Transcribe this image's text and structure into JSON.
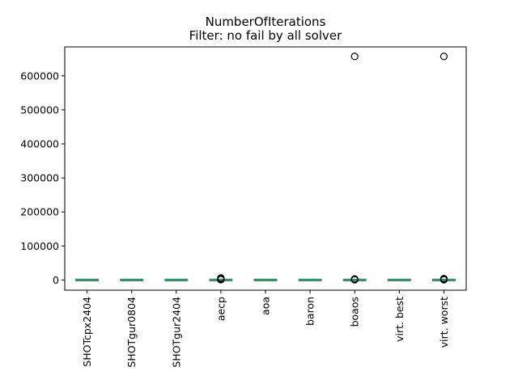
{
  "chart_data": {
    "type": "box",
    "title": "NumberOfIterations",
    "subtitle": "Filter: no fail by all solver",
    "xlabel": "",
    "ylabel": "",
    "ylim": [
      -30000,
      685000
    ],
    "yticks": [
      0,
      100000,
      200000,
      300000,
      400000,
      500000,
      600000
    ],
    "ytick_labels": [
      "0",
      "100000",
      "200000",
      "300000",
      "400000",
      "500000",
      "600000"
    ],
    "grid": false,
    "legend": "none",
    "categories": [
      "SHOTcpx2404",
      "SHOTgur0804",
      "SHOTgur2404",
      "aecp",
      "aoa",
      "baron",
      "boaos",
      "virt. best",
      "virt. worst"
    ],
    "boxes": [
      {
        "name": "SHOTcpx2404",
        "whislo": 0,
        "q1": 0,
        "median": 0,
        "q3": 0,
        "whishi": 0,
        "outliers": []
      },
      {
        "name": "SHOTgur0804",
        "whislo": 0,
        "q1": 0,
        "median": 0,
        "q3": 0,
        "whishi": 0,
        "outliers": []
      },
      {
        "name": "SHOTgur2404",
        "whislo": 0,
        "q1": 0,
        "median": 0,
        "q3": 0,
        "whishi": 0,
        "outliers": []
      },
      {
        "name": "aecp",
        "whislo": 0,
        "q1": 0,
        "median": 0,
        "q3": 0,
        "whishi": 0,
        "outliers": [
          1000,
          2500,
          4000,
          6000
        ]
      },
      {
        "name": "aoa",
        "whislo": 0,
        "q1": 0,
        "median": 0,
        "q3": 0,
        "whishi": 0,
        "outliers": []
      },
      {
        "name": "baron",
        "whislo": 0,
        "q1": 0,
        "median": 0,
        "q3": 0,
        "whishi": 0,
        "outliers": []
      },
      {
        "name": "boaos",
        "whislo": 0,
        "q1": 0,
        "median": 0,
        "q3": 0,
        "whishi": 0,
        "outliers": [
          500,
          1500,
          3000,
          657000
        ]
      },
      {
        "name": "virt. best",
        "whislo": 0,
        "q1": 0,
        "median": 0,
        "q3": 0,
        "whishi": 0,
        "outliers": []
      },
      {
        "name": "virt. worst",
        "whislo": 0,
        "q1": 0,
        "median": 0,
        "q3": 0,
        "whishi": 0,
        "outliers": [
          500,
          2000,
          4000,
          657000
        ]
      }
    ],
    "colors": {
      "box": "#2f7f6f",
      "median": "#3a9f5f",
      "outlier": "#000000"
    }
  }
}
